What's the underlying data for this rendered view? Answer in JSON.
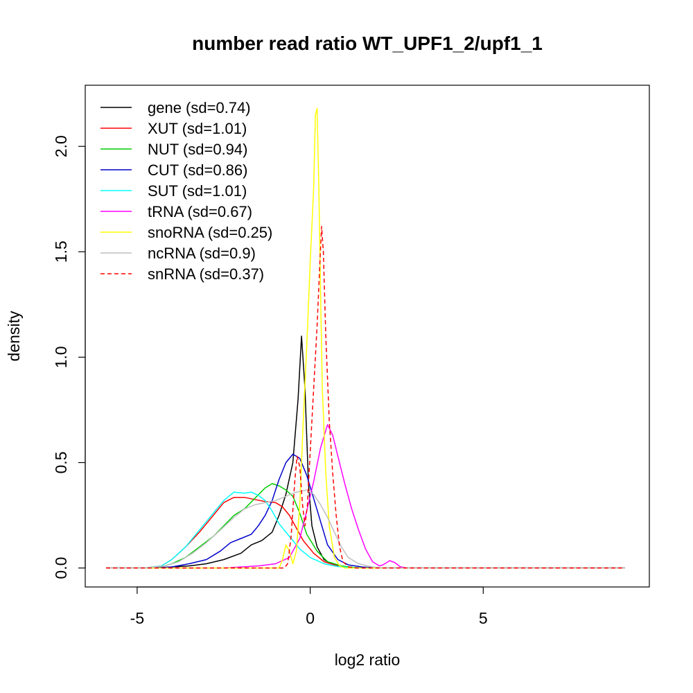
{
  "chart_data": {
    "type": "line",
    "title": "number read ratio WT_UPF1_2/upf1_1",
    "xlabel": "log2 ratio",
    "ylabel": "density",
    "xlim": [
      -6.5,
      9.8
    ],
    "ylim": [
      -0.09,
      2.29
    ],
    "xticks": [
      -5,
      0,
      5
    ],
    "xtick_labels": [
      "-5",
      "0",
      "5"
    ],
    "yticks": [
      0.0,
      0.5,
      1.0,
      1.5,
      2.0
    ],
    "ytick_labels": [
      "0.0",
      "0.5",
      "1.0",
      "1.5",
      "2.0"
    ],
    "grid": false,
    "legend_position": "top-left",
    "series": [
      {
        "name": "gene (sd=0.74)",
        "color": "#000000",
        "dash": "solid",
        "points": [
          [
            -5.9,
            0
          ],
          [
            -4.5,
            0
          ],
          [
            -4.0,
            0.005
          ],
          [
            -3.5,
            0.01
          ],
          [
            -3.0,
            0.02
          ],
          [
            -2.5,
            0.04
          ],
          [
            -2.0,
            0.07
          ],
          [
            -1.7,
            0.11
          ],
          [
            -1.4,
            0.13
          ],
          [
            -1.1,
            0.17
          ],
          [
            -0.9,
            0.25
          ],
          [
            -0.7,
            0.35
          ],
          [
            -0.5,
            0.5
          ],
          [
            -0.35,
            0.8
          ],
          [
            -0.25,
            1.1
          ],
          [
            -0.15,
            0.85
          ],
          [
            -0.05,
            0.4
          ],
          [
            0.05,
            0.2
          ],
          [
            0.2,
            0.1
          ],
          [
            0.4,
            0.04
          ],
          [
            0.6,
            0.02
          ],
          [
            1.0,
            0.005
          ],
          [
            1.5,
            0
          ],
          [
            9.1,
            0
          ]
        ]
      },
      {
        "name": "XUT (sd=1.01)",
        "color": "#ff0000",
        "dash": "solid",
        "points": [
          [
            -5.9,
            0
          ],
          [
            -4.8,
            0
          ],
          [
            -4.3,
            0.01
          ],
          [
            -4.0,
            0.04
          ],
          [
            -3.6,
            0.1
          ],
          [
            -3.2,
            0.17
          ],
          [
            -2.8,
            0.25
          ],
          [
            -2.5,
            0.31
          ],
          [
            -2.2,
            0.335
          ],
          [
            -1.9,
            0.335
          ],
          [
            -1.6,
            0.325
          ],
          [
            -1.3,
            0.315
          ],
          [
            -1.0,
            0.31
          ],
          [
            -0.8,
            0.29
          ],
          [
            -0.6,
            0.25
          ],
          [
            -0.4,
            0.19
          ],
          [
            -0.2,
            0.13
          ],
          [
            0.1,
            0.07
          ],
          [
            0.4,
            0.03
          ],
          [
            0.8,
            0.01
          ],
          [
            1.2,
            0.002
          ],
          [
            1.6,
            0
          ],
          [
            9.1,
            0
          ]
        ]
      },
      {
        "name": "NUT (sd=0.94)",
        "color": "#00cc00",
        "dash": "solid",
        "points": [
          [
            -5.9,
            0
          ],
          [
            -4.8,
            0
          ],
          [
            -4.3,
            0.005
          ],
          [
            -4.0,
            0.02
          ],
          [
            -3.6,
            0.05
          ],
          [
            -3.2,
            0.1
          ],
          [
            -2.8,
            0.15
          ],
          [
            -2.5,
            0.2
          ],
          [
            -2.2,
            0.25
          ],
          [
            -1.9,
            0.28
          ],
          [
            -1.6,
            0.33
          ],
          [
            -1.3,
            0.38
          ],
          [
            -1.1,
            0.4
          ],
          [
            -0.9,
            0.39
          ],
          [
            -0.7,
            0.37
          ],
          [
            -0.5,
            0.34
          ],
          [
            -0.3,
            0.26
          ],
          [
            -0.1,
            0.16
          ],
          [
            0.2,
            0.08
          ],
          [
            0.5,
            0.03
          ],
          [
            0.9,
            0.01
          ],
          [
            1.3,
            0.002
          ],
          [
            1.7,
            0
          ],
          [
            9.1,
            0
          ]
        ]
      },
      {
        "name": "CUT (sd=0.86)",
        "color": "#0000cc",
        "dash": "solid",
        "points": [
          [
            -5.9,
            0
          ],
          [
            -4.6,
            0
          ],
          [
            -4.0,
            0.005
          ],
          [
            -3.5,
            0.02
          ],
          [
            -3.0,
            0.04
          ],
          [
            -2.6,
            0.08
          ],
          [
            -2.3,
            0.12
          ],
          [
            -2.0,
            0.14
          ],
          [
            -1.7,
            0.16
          ],
          [
            -1.5,
            0.2
          ],
          [
            -1.3,
            0.25
          ],
          [
            -1.1,
            0.32
          ],
          [
            -0.9,
            0.42
          ],
          [
            -0.7,
            0.5
          ],
          [
            -0.5,
            0.54
          ],
          [
            -0.3,
            0.52
          ],
          [
            -0.1,
            0.44
          ],
          [
            0.1,
            0.33
          ],
          [
            0.3,
            0.22
          ],
          [
            0.5,
            0.11
          ],
          [
            0.8,
            0.04
          ],
          [
            1.1,
            0.015
          ],
          [
            1.5,
            0.005
          ],
          [
            2.0,
            0
          ],
          [
            9.1,
            0
          ]
        ]
      },
      {
        "name": "SUT (sd=1.01)",
        "color": "#00ffff",
        "dash": "solid",
        "points": [
          [
            -5.9,
            0
          ],
          [
            -4.8,
            0
          ],
          [
            -4.3,
            0.01
          ],
          [
            -4.0,
            0.04
          ],
          [
            -3.6,
            0.1
          ],
          [
            -3.2,
            0.18
          ],
          [
            -2.8,
            0.26
          ],
          [
            -2.5,
            0.32
          ],
          [
            -2.2,
            0.36
          ],
          [
            -1.9,
            0.355
          ],
          [
            -1.7,
            0.36
          ],
          [
            -1.5,
            0.345
          ],
          [
            -1.3,
            0.32
          ],
          [
            -1.1,
            0.27
          ],
          [
            -0.9,
            0.21
          ],
          [
            -0.6,
            0.15
          ],
          [
            -0.3,
            0.09
          ],
          [
            0.0,
            0.05
          ],
          [
            0.4,
            0.02
          ],
          [
            0.8,
            0.007
          ],
          [
            1.3,
            0
          ],
          [
            9.1,
            0
          ]
        ]
      },
      {
        "name": "tRNA (sd=0.67)",
        "color": "#ff00ff",
        "dash": "solid",
        "points": [
          [
            -5.9,
            0
          ],
          [
            -2.5,
            0
          ],
          [
            -2.0,
            0.005
          ],
          [
            -1.5,
            0.01
          ],
          [
            -1.0,
            0.02
          ],
          [
            -0.6,
            0.05
          ],
          [
            -0.3,
            0.14
          ],
          [
            -0.1,
            0.27
          ],
          [
            0.1,
            0.41
          ],
          [
            0.3,
            0.57
          ],
          [
            0.5,
            0.68
          ],
          [
            0.65,
            0.63
          ],
          [
            0.8,
            0.53
          ],
          [
            1.0,
            0.4
          ],
          [
            1.2,
            0.28
          ],
          [
            1.4,
            0.18
          ],
          [
            1.6,
            0.09
          ],
          [
            1.8,
            0.03
          ],
          [
            2.0,
            0.01
          ],
          [
            2.1,
            0.015
          ],
          [
            2.3,
            0.035
          ],
          [
            2.45,
            0.025
          ],
          [
            2.6,
            0.006
          ],
          [
            2.8,
            0
          ],
          [
            9.1,
            0
          ]
        ]
      },
      {
        "name": "snoRNA (sd=0.25)",
        "color": "#ffff00",
        "dash": "solid",
        "points": [
          [
            -5.9,
            0
          ],
          [
            -0.9,
            0
          ],
          [
            -0.8,
            0.04
          ],
          [
            -0.7,
            0.11
          ],
          [
            -0.6,
            0.08
          ],
          [
            -0.5,
            0.02
          ],
          [
            -0.4,
            0.08
          ],
          [
            -0.3,
            0.3
          ],
          [
            -0.2,
            0.7
          ],
          [
            -0.1,
            1.05
          ],
          [
            0.0,
            1.45
          ],
          [
            0.1,
            1.8
          ],
          [
            0.15,
            2.15
          ],
          [
            0.2,
            2.18
          ],
          [
            0.25,
            1.8
          ],
          [
            0.3,
            1.3
          ],
          [
            0.35,
            0.85
          ],
          [
            0.45,
            0.45
          ],
          [
            0.55,
            0.2
          ],
          [
            0.7,
            0.05
          ],
          [
            0.85,
            0.01
          ],
          [
            1.0,
            0
          ],
          [
            9.1,
            0
          ]
        ]
      },
      {
        "name": "ncRNA (sd=0.9)",
        "color": "#bebebe",
        "dash": "solid",
        "points": [
          [
            -5.9,
            0
          ],
          [
            -4.8,
            0
          ],
          [
            -4.2,
            0.01
          ],
          [
            -3.8,
            0.03
          ],
          [
            -3.4,
            0.07
          ],
          [
            -3.0,
            0.12
          ],
          [
            -2.6,
            0.18
          ],
          [
            -2.2,
            0.24
          ],
          [
            -1.9,
            0.28
          ],
          [
            -1.6,
            0.3
          ],
          [
            -1.3,
            0.31
          ],
          [
            -1.0,
            0.32
          ],
          [
            -0.7,
            0.34
          ],
          [
            -0.4,
            0.36
          ],
          [
            -0.1,
            0.37
          ],
          [
            0.1,
            0.35
          ],
          [
            0.3,
            0.3
          ],
          [
            0.5,
            0.24
          ],
          [
            0.7,
            0.17
          ],
          [
            0.9,
            0.1
          ],
          [
            1.1,
            0.05
          ],
          [
            1.4,
            0.02
          ],
          [
            1.8,
            0.005
          ],
          [
            2.2,
            0
          ],
          [
            9.1,
            0
          ]
        ]
      },
      {
        "name": "snRNA (sd=0.37)",
        "color": "#ff0000",
        "dash": "dashed",
        "points": [
          [
            -5.9,
            0
          ],
          [
            -0.75,
            0
          ],
          [
            -0.65,
            0.02
          ],
          [
            -0.55,
            0.15
          ],
          [
            -0.45,
            0.4
          ],
          [
            -0.38,
            0.53
          ],
          [
            -0.3,
            0.48
          ],
          [
            -0.22,
            0.3
          ],
          [
            -0.15,
            0.2
          ],
          [
            -0.08,
            0.3
          ],
          [
            0.0,
            0.55
          ],
          [
            0.1,
            0.85
          ],
          [
            0.2,
            1.15
          ],
          [
            0.28,
            1.45
          ],
          [
            0.33,
            1.62
          ],
          [
            0.38,
            1.5
          ],
          [
            0.45,
            1.1
          ],
          [
            0.55,
            0.7
          ],
          [
            0.65,
            0.45
          ],
          [
            0.75,
            0.25
          ],
          [
            0.85,
            0.1
          ],
          [
            0.95,
            0.03
          ],
          [
            1.1,
            0.005
          ],
          [
            1.3,
            0
          ],
          [
            9.1,
            0
          ]
        ]
      }
    ]
  }
}
